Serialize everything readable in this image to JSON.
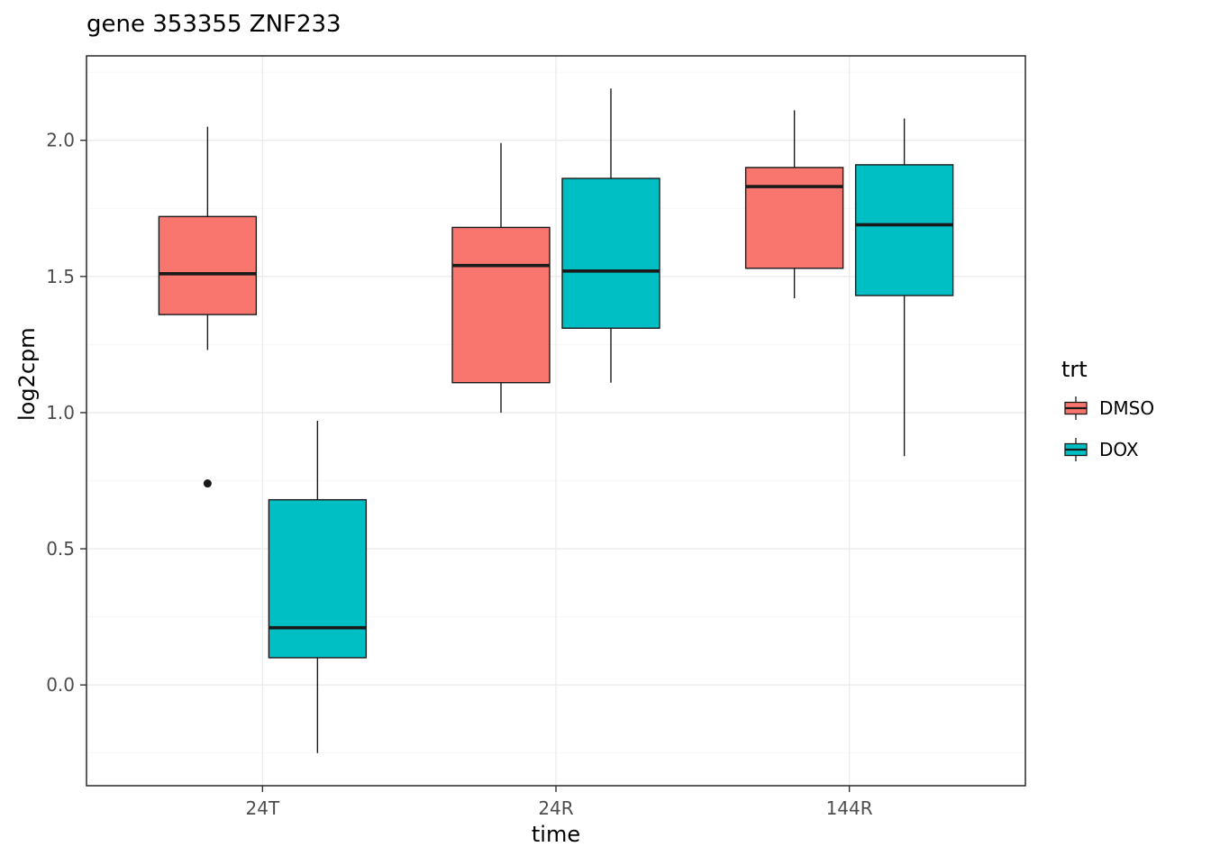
{
  "chart_data": {
    "type": "boxplot",
    "title": "gene 353355 ZNF233",
    "xlabel": "time",
    "ylabel": "log2cpm",
    "categories": [
      "24T",
      "24R",
      "144R"
    ],
    "yticks": [
      0.0,
      0.5,
      1.0,
      1.5,
      2.0
    ],
    "ylim": [
      -0.37,
      2.31
    ],
    "grid": {
      "major_color": "#EBEBEB",
      "minor_color": "#F4F4F4",
      "panel_border": "#1a1a1a",
      "tick_label_color": "#4D4D4D"
    },
    "legend": {
      "title": "trt",
      "entries": [
        {
          "label": "DMSO",
          "color": "#F8766D"
        },
        {
          "label": "DOX",
          "color": "#00BFC4"
        }
      ]
    },
    "series": [
      {
        "name": "DMSO",
        "color": "#F8766D",
        "boxes": [
          {
            "category": "24T",
            "whisker_low": 1.23,
            "q1": 1.36,
            "median": 1.51,
            "q3": 1.72,
            "whisker_high": 2.05,
            "outliers": [
              0.74
            ]
          },
          {
            "category": "24R",
            "whisker_low": 1.0,
            "q1": 1.11,
            "median": 1.54,
            "q3": 1.68,
            "whisker_high": 1.99,
            "outliers": []
          },
          {
            "category": "144R",
            "whisker_low": 1.42,
            "q1": 1.53,
            "median": 1.83,
            "q3": 1.9,
            "whisker_high": 2.11,
            "outliers": []
          }
        ]
      },
      {
        "name": "DOX",
        "color": "#00BFC4",
        "boxes": [
          {
            "category": "24T",
            "whisker_low": -0.25,
            "q1": 0.1,
            "median": 0.21,
            "q3": 0.68,
            "whisker_high": 0.97,
            "outliers": []
          },
          {
            "category": "24R",
            "whisker_low": 1.11,
            "q1": 1.31,
            "median": 1.52,
            "q3": 1.86,
            "whisker_high": 2.19,
            "outliers": []
          },
          {
            "category": "144R",
            "whisker_low": 0.84,
            "q1": 1.43,
            "median": 1.69,
            "q3": 1.91,
            "whisker_high": 2.08,
            "outliers": []
          }
        ]
      }
    ]
  }
}
